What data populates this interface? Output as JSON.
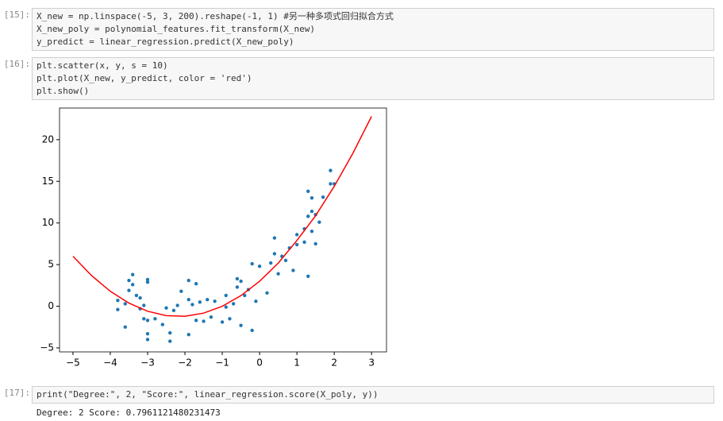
{
  "cells": [
    {
      "prompt": "[15]:",
      "code": [
        "X_new = np.linspace(-5, 3, 200).reshape(-1, 1) #另一种多项式回归拟合方式",
        "X_new_poly = polynomial_features.fit_transform(X_new)",
        "y_predict = linear_regression.predict(X_new_poly)"
      ]
    },
    {
      "prompt": "[16]:",
      "code": [
        "plt.scatter(x, y, s = 10)",
        "plt.plot(X_new, y_predict, color = 'red')",
        "plt.show()"
      ]
    },
    {
      "prompt": "[17]:",
      "code": [
        "print(\"Degree:\", 2, \"Score:\", linear_regression.score(X_poly, y))"
      ],
      "output": "Degree: 2 Score: 0.7961121480231473"
    }
  ],
  "chart_data": {
    "type": "scatter",
    "xlim": [
      -5.36,
      3.4
    ],
    "ylim": [
      -5.48,
      23.8
    ],
    "xticks": [
      {
        "value": -5,
        "label": "−5"
      },
      {
        "value": -4,
        "label": "−4"
      },
      {
        "value": -3,
        "label": "−3"
      },
      {
        "value": -2,
        "label": "−2"
      },
      {
        "value": -1,
        "label": "−1"
      },
      0,
      1,
      2,
      3
    ],
    "yticks": [
      {
        "value": -5,
        "label": "−5"
      },
      0,
      5,
      10,
      15,
      20
    ],
    "series": [
      {
        "type": "scatter",
        "color": "#1f77b4",
        "x": [
          -3.8,
          -3.8,
          -3.6,
          -3.6,
          -3.5,
          -3.5,
          -3.4,
          -3.4,
          -3.3,
          -3.2,
          -3.2,
          -3.1,
          -3.1,
          -3.0,
          -3.0,
          -3.0,
          -3.0,
          -3.0,
          -2.8,
          -2.6,
          -2.5,
          -2.4,
          -2.4,
          -2.3,
          -2.2,
          -2.1,
          -1.9,
          -1.9,
          -1.9,
          -1.8,
          -1.7,
          -1.7,
          -1.6,
          -1.5,
          -1.4,
          -1.3,
          -1.2,
          -1.0,
          -0.9,
          -0.9,
          -0.8,
          -0.7,
          -0.6,
          -0.6,
          -0.5,
          -0.5,
          -0.4,
          -0.3,
          -0.2,
          -0.2,
          -0.1,
          0,
          0.2,
          0.3,
          0.4,
          0.4,
          0.5,
          0.6,
          0.7,
          0.8,
          0.9,
          1.0,
          1.0,
          1.2,
          1.2,
          1.3,
          1.3,
          1.3,
          1.4,
          1.4,
          1.5,
          1.6,
          1.7,
          1.9,
          1.9,
          2.0,
          1.4,
          1.5
        ],
        "values": [
          -0.4,
          0.7,
          -2.5,
          0.3,
          1.9,
          3.1,
          2.6,
          3.8,
          1.3,
          1.0,
          -0.3,
          -1.5,
          0.1,
          -1.7,
          2.9,
          3.2,
          -3.3,
          -4.0,
          -1.5,
          -2.2,
          -0.2,
          -3.2,
          -4.2,
          -0.5,
          0.1,
          1.8,
          -3.4,
          0.8,
          3.1,
          0.2,
          2.7,
          -1.7,
          0.5,
          -1.8,
          0.8,
          -1.3,
          0.6,
          -1.9,
          1.3,
          -0.1,
          -1.5,
          0.3,
          2.3,
          3.3,
          3.0,
          -2.3,
          1.3,
          2.0,
          -2.9,
          5.1,
          0.6,
          4.8,
          1.6,
          5.2,
          8.2,
          6.3,
          3.9,
          6.0,
          5.5,
          7.0,
          4.3,
          8.6,
          7.4,
          9.3,
          7.7,
          10.8,
          3.6,
          13.8,
          11.4,
          9.0,
          7.5,
          10.1,
          13.1,
          14.7,
          16.3,
          14.7,
          13.0,
          11.0
        ]
      },
      {
        "type": "line",
        "color": "red",
        "x": [
          -5,
          -4.5,
          -4,
          -3.5,
          -3,
          -2.5,
          -2,
          -1.5,
          -1,
          -0.5,
          0,
          0.5,
          1,
          1.5,
          2,
          2.5,
          3
        ],
        "values": [
          6.0,
          3.675,
          1.8,
          0.375,
          -0.6,
          -1.125,
          -1.2,
          -0.825,
          0,
          1.275,
          3,
          5.175,
          7.9,
          10.875,
          14.4,
          18.375,
          22.8
        ]
      }
    ]
  }
}
